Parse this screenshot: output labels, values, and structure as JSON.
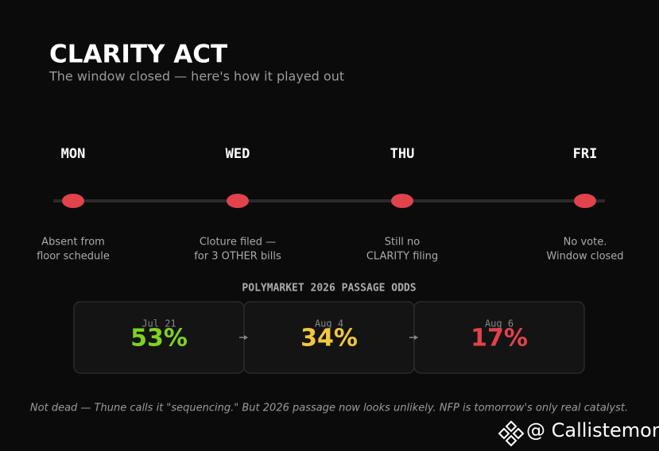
{
  "header": {
    "title": "CLARITY ACT",
    "subtitle": "The window closed — here's how it played out"
  },
  "timeline": {
    "days": [
      {
        "label": "MON",
        "note": [
          "Absent from",
          "floor schedule"
        ]
      },
      {
        "label": "WED",
        "note": [
          "Cloture filed —",
          "for 3 OTHER bills"
        ]
      },
      {
        "label": "THU",
        "note": [
          "Still no",
          "CLARITY filing"
        ]
      },
      {
        "label": "FRI",
        "note": [
          "No vote.",
          "Window closed"
        ]
      }
    ]
  },
  "odds": {
    "title": "POLYMARKET 2026 PASSAGE ODDS",
    "cards": [
      {
        "date": "Jul 21",
        "value": "53%",
        "color": "#7ed321"
      },
      {
        "date": "Aug 4",
        "value": "34%",
        "color": "#f0c93a"
      },
      {
        "date": "Aug 6",
        "value": "17%",
        "color": "#e0434a"
      }
    ]
  },
  "footer": {
    "note": "Not dead — Thune calls it \"sequencing.\" But 2026 passage now looks unlikely. NFP is tomorrow's only real catalyst.",
    "watermark": "@ Callistemon"
  }
}
